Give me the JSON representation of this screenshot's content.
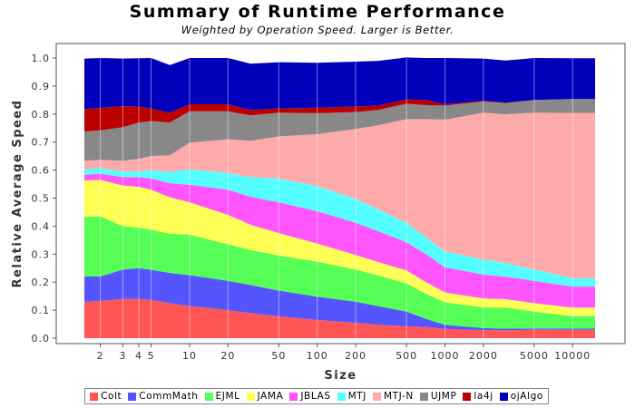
{
  "chart_data": {
    "type": "area",
    "stacked": true,
    "title": "Summary of Runtime Performance",
    "subtitle": "Weighted by Operation Speed. Larger is Better.",
    "xlabel": "Size",
    "ylabel": "Relative Average Speed",
    "x_scale": "log",
    "ylim": [
      0,
      1.0
    ],
    "y_ticks": [
      "0.0",
      "0.1",
      "0.2",
      "0.3",
      "0.4",
      "0.5",
      "0.6",
      "0.7",
      "0.8",
      "0.9",
      "1.0"
    ],
    "x": [
      1.5,
      2,
      3,
      4,
      5,
      7,
      10,
      20,
      30,
      50,
      100,
      200,
      300,
      500,
      700,
      1000,
      2000,
      3000,
      5000,
      10000,
      15000
    ],
    "x_ticks": [
      "2",
      "3",
      "4",
      "5",
      "10",
      "20",
      "50",
      "100",
      "200",
      "500",
      "1000",
      "2000",
      "5000",
      "10000"
    ],
    "x_tick_values": [
      2,
      3,
      4,
      5,
      10,
      20,
      50,
      100,
      200,
      500,
      1000,
      2000,
      5000,
      10000
    ],
    "grid": "vertical",
    "legend_position": "bottom",
    "series": [
      {
        "name": "Colt",
        "color": "#ff5555",
        "values": [
          0.13,
          0.133,
          0.14,
          0.14,
          0.137,
          0.125,
          0.115,
          0.1,
          0.09,
          0.078,
          0.065,
          0.055,
          0.048,
          0.043,
          0.04,
          0.033,
          0.028,
          0.028,
          0.03,
          0.03,
          0.03
        ]
      },
      {
        "name": "CommMath",
        "color": "#5555ff",
        "values": [
          0.09,
          0.087,
          0.105,
          0.11,
          0.107,
          0.108,
          0.11,
          0.105,
          0.1,
          0.092,
          0.083,
          0.075,
          0.066,
          0.052,
          0.03,
          0.015,
          0.008,
          0.006,
          0.005,
          0.004,
          0.004
        ]
      },
      {
        "name": "EJML",
        "color": "#55ff55",
        "values": [
          0.213,
          0.215,
          0.155,
          0.145,
          0.143,
          0.14,
          0.145,
          0.13,
          0.125,
          0.125,
          0.125,
          0.115,
          0.11,
          0.1,
          0.09,
          0.08,
          0.074,
          0.075,
          0.06,
          0.045,
          0.045
        ]
      },
      {
        "name": "JAMA",
        "color": "#ffff55",
        "values": [
          0.13,
          0.13,
          0.145,
          0.145,
          0.143,
          0.13,
          0.115,
          0.105,
          0.09,
          0.08,
          0.065,
          0.052,
          0.048,
          0.047,
          0.042,
          0.035,
          0.032,
          0.03,
          0.03,
          0.03,
          0.03
        ]
      },
      {
        "name": "JBLAS",
        "color": "#ff55ff",
        "values": [
          0.02,
          0.022,
          0.03,
          0.035,
          0.04,
          0.05,
          0.063,
          0.09,
          0.1,
          0.11,
          0.115,
          0.115,
          0.11,
          0.1,
          0.1,
          0.09,
          0.085,
          0.08,
          0.08,
          0.075,
          0.075
        ]
      },
      {
        "name": "MTJ",
        "color": "#55ffff",
        "values": [
          0.02,
          0.02,
          0.02,
          0.02,
          0.03,
          0.04,
          0.055,
          0.06,
          0.07,
          0.085,
          0.09,
          0.085,
          0.078,
          0.07,
          0.06,
          0.057,
          0.053,
          0.05,
          0.04,
          0.03,
          0.03
        ]
      },
      {
        "name": "MTJ-N",
        "color": "#ffaaaa",
        "values": [
          0.03,
          0.03,
          0.038,
          0.045,
          0.05,
          0.06,
          0.095,
          0.12,
          0.13,
          0.15,
          0.185,
          0.25,
          0.3,
          0.37,
          0.42,
          0.47,
          0.525,
          0.53,
          0.56,
          0.59,
          0.59
        ]
      },
      {
        "name": "UJMP",
        "color": "#888888",
        "values": [
          0.105,
          0.105,
          0.12,
          0.13,
          0.125,
          0.117,
          0.112,
          0.1,
          0.09,
          0.085,
          0.075,
          0.06,
          0.055,
          0.055,
          0.05,
          0.05,
          0.04,
          0.04,
          0.045,
          0.05,
          0.05
        ]
      },
      {
        "name": "la4j",
        "color": "#bb0000",
        "values": [
          0.08,
          0.08,
          0.075,
          0.057,
          0.045,
          0.035,
          0.025,
          0.025,
          0.02,
          0.015,
          0.02,
          0.02,
          0.015,
          0.015,
          0.018,
          0.005,
          0.003,
          0.002,
          0.0,
          0.0,
          0.0
        ]
      },
      {
        "name": "ojAlgo",
        "color": "#0000bb",
        "values": [
          0.18,
          0.178,
          0.17,
          0.172,
          0.18,
          0.17,
          0.165,
          0.165,
          0.165,
          0.165,
          0.16,
          0.16,
          0.16,
          0.15,
          0.15,
          0.165,
          0.15,
          0.15,
          0.15,
          0.145,
          0.145
        ]
      }
    ]
  }
}
